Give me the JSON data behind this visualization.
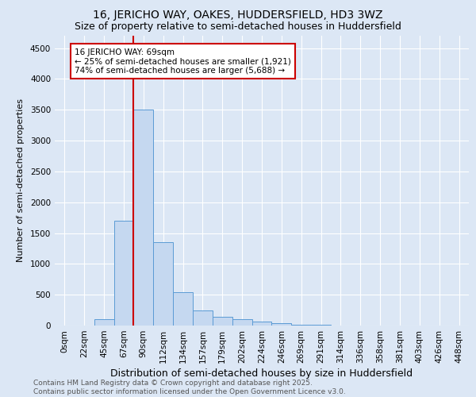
{
  "title1": "16, JERICHO WAY, OAKES, HUDDERSFIELD, HD3 3WZ",
  "title2": "Size of property relative to semi-detached houses in Huddersfield",
  "xlabel": "Distribution of semi-detached houses by size in Huddersfield",
  "ylabel": "Number of semi-detached properties",
  "bar_labels": [
    "0sqm",
    "22sqm",
    "45sqm",
    "67sqm",
    "90sqm",
    "112sqm",
    "134sqm",
    "157sqm",
    "179sqm",
    "202sqm",
    "224sqm",
    "246sqm",
    "269sqm",
    "291sqm",
    "314sqm",
    "336sqm",
    "358sqm",
    "381sqm",
    "403sqm",
    "426sqm",
    "448sqm"
  ],
  "bar_values": [
    0,
    0,
    100,
    1700,
    3500,
    1350,
    540,
    250,
    140,
    100,
    60,
    40,
    15,
    10,
    5,
    2,
    1,
    0,
    0,
    0,
    0
  ],
  "bar_color": "#c5d8f0",
  "bar_edge_color": "#5b9bd5",
  "property_line_x": 3.5,
  "annotation_text": "16 JERICHO WAY: 69sqm\n← 25% of semi-detached houses are smaller (1,921)\n74% of semi-detached houses are larger (5,688) →",
  "annotation_box_color": "#ffffff",
  "annotation_box_edge_color": "#cc0000",
  "annotation_text_color": "#000000",
  "vline_color": "#cc0000",
  "ylim": [
    0,
    4700
  ],
  "yticks": [
    0,
    500,
    1000,
    1500,
    2000,
    2500,
    3000,
    3500,
    4000,
    4500
  ],
  "footnote": "Contains HM Land Registry data © Crown copyright and database right 2025.\nContains public sector information licensed under the Open Government Licence v3.0.",
  "bg_color": "#dce7f5",
  "plot_bg_color": "#dce7f5",
  "title1_fontsize": 10,
  "title2_fontsize": 9,
  "xlabel_fontsize": 9,
  "ylabel_fontsize": 8,
  "tick_fontsize": 7.5,
  "footnote_fontsize": 6.5
}
